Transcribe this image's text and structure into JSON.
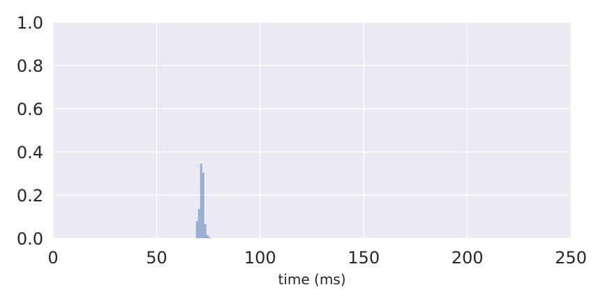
{
  "chart_data": {
    "type": "bar",
    "title": "",
    "xlabel": "time (ms)",
    "ylabel": "",
    "xlim": [
      0,
      250
    ],
    "ylim": [
      0,
      1.0
    ],
    "x_ticks": [
      "0",
      "50",
      "100",
      "150",
      "200",
      "250"
    ],
    "y_ticks": [
      "0.0",
      "0.2",
      "0.4",
      "0.6",
      "0.8",
      "1.0"
    ],
    "grid": true,
    "legend": "none",
    "colors": {
      "plot_background": "#eaeaf2",
      "grid": "#ffffff",
      "bars": "#4c72b0",
      "bar_opacity": 0.5,
      "text": "#262626"
    },
    "bin_width": 1,
    "bins": [
      {
        "x": 69,
        "value": 0.08
      },
      {
        "x": 70,
        "value": 0.135
      },
      {
        "x": 71,
        "value": 0.345
      },
      {
        "x": 72,
        "value": 0.305
      },
      {
        "x": 73,
        "value": 0.065
      },
      {
        "x": 74,
        "value": 0.015
      },
      {
        "x": 75,
        "value": 0.006
      }
    ]
  }
}
